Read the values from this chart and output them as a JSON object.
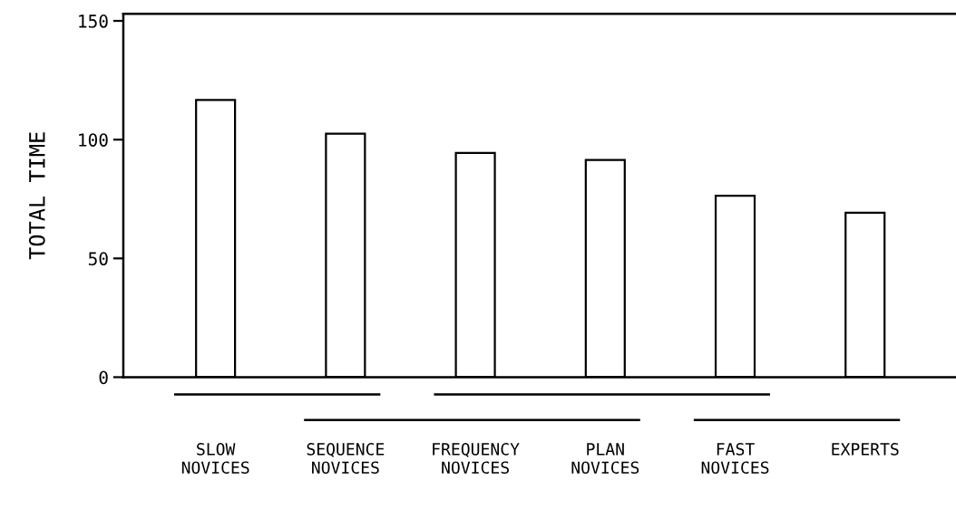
{
  "chart_data": {
    "type": "bar",
    "ylabel": "TOTAL TIME",
    "categories": [
      "SLOW\nNOVICES",
      "SEQUENCE\nNOVICES",
      "FREQUENCY\nNOVICES",
      "PLAN\nNOVICES",
      "FAST\nNOVICES",
      "EXPERTS"
    ],
    "values": [
      116.7,
      102.5,
      94.4,
      91.4,
      76.4,
      69.2
    ],
    "color": "#ffffff",
    "ylim": [
      0,
      153
    ],
    "yticks": [
      0,
      50,
      100,
      150
    ],
    "grid": false
  }
}
